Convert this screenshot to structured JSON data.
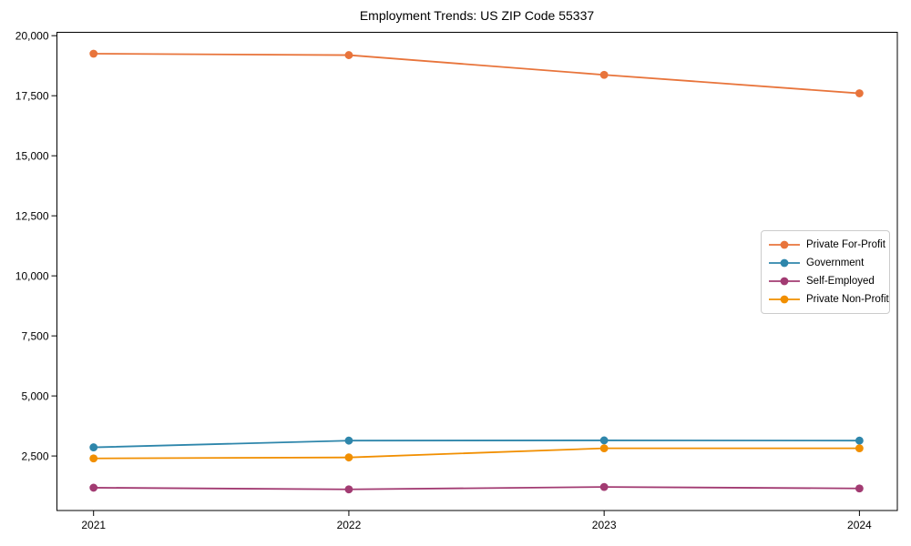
{
  "figure": {
    "background": "#ffffff"
  },
  "chart_data": {
    "type": "line",
    "title": "Employment Trends: US ZIP Code 55337",
    "xlabel": "",
    "ylabel": "",
    "categories": [
      "2021",
      "2022",
      "2023",
      "2024"
    ],
    "series": [
      {
        "name": "Private For-Profit",
        "color": "#E8743B",
        "values": [
          19250,
          19190,
          18370,
          17600
        ]
      },
      {
        "name": "Government",
        "color": "#2E86AB",
        "values": [
          2860,
          3140,
          3150,
          3140
        ]
      },
      {
        "name": "Self-Employed",
        "color": "#A23B72",
        "values": [
          1180,
          1110,
          1210,
          1150
        ]
      },
      {
        "name": "Private Non-Profit",
        "color": "#F18F01",
        "values": [
          2400,
          2440,
          2820,
          2820
        ]
      }
    ],
    "yticks": [
      {
        "value": 2500,
        "label": "2,500"
      },
      {
        "value": 5000,
        "label": "5,000"
      },
      {
        "value": 7500,
        "label": "7,500"
      },
      {
        "value": 10000,
        "label": "10,000"
      },
      {
        "value": 12500,
        "label": "12,500"
      },
      {
        "value": 15000,
        "label": "15,000"
      },
      {
        "value": 17500,
        "label": "17,500"
      },
      {
        "value": 20000,
        "label": "20,000"
      }
    ],
    "ylim": [
      230,
      20140
    ],
    "grid": false,
    "marker": "circle",
    "legend_position": "center-right"
  }
}
